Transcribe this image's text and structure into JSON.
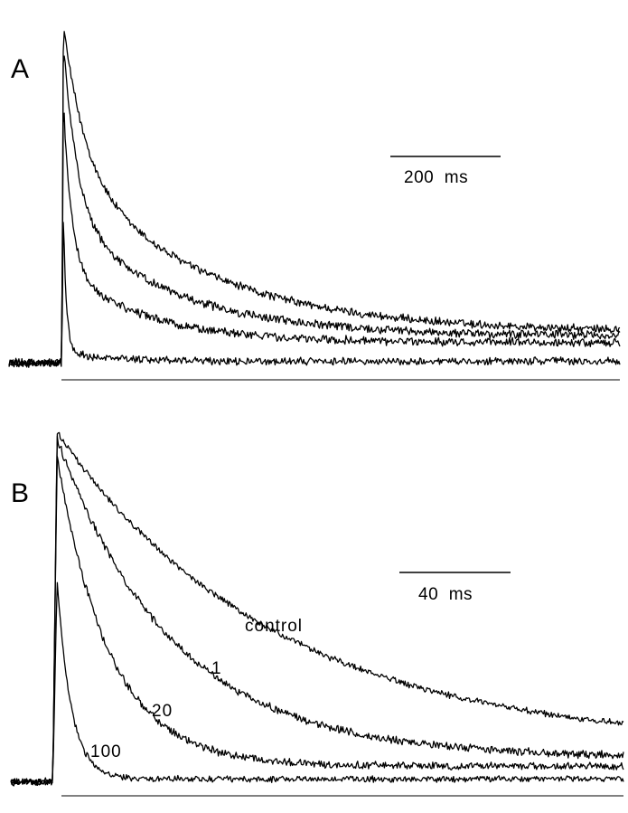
{
  "chart_data": [
    {
      "type": "line",
      "panel_label": "A",
      "scale_bar": {
        "value": 200,
        "label": "200  ms"
      },
      "x_unit": "ms",
      "xlim": [
        -70,
        740
      ],
      "ylim": [
        -0.05,
        1.05
      ],
      "onset": 0,
      "baseline": 0,
      "series": [
        {
          "peak": 1.0,
          "tau_fast": 28,
          "tau_slow": 180,
          "slow_fraction": 0.55,
          "plateau": 0.09,
          "noise": 0.011
        },
        {
          "peak": 0.95,
          "tau_fast": 18,
          "tau_slow": 140,
          "slow_fraction": 0.42,
          "plateau": 0.08,
          "noise": 0.011
        },
        {
          "peak": 0.78,
          "tau_fast": 11,
          "tau_slow": 110,
          "slow_fraction": 0.3,
          "plateau": 0.06,
          "noise": 0.011
        },
        {
          "peak": 0.45,
          "tau_fast": 4,
          "tau_slow": 60,
          "slow_fraction": 0.06,
          "plateau": 0.005,
          "noise": 0.01
        }
      ]
    },
    {
      "type": "line",
      "panel_label": "B",
      "scale_bar": {
        "value": 40,
        "label": "40  ms"
      },
      "x_unit": "ms",
      "xlim": [
        -12,
        163
      ],
      "ylim": [
        -0.04,
        1.02
      ],
      "onset": 0,
      "baseline": 0,
      "series": [
        {
          "name": "control",
          "peak": 1.0,
          "tau": 62,
          "plateau": 0.1,
          "noise": 0.008
        },
        {
          "name": "1",
          "peak": 0.98,
          "tau": 33,
          "plateau": 0.07,
          "noise": 0.01
        },
        {
          "name": "20",
          "peak": 0.93,
          "tau": 15,
          "plateau": 0.045,
          "noise": 0.01
        },
        {
          "name": "100",
          "peak": 0.58,
          "tau": 4,
          "plateau": 0.008,
          "noise": 0.008
        }
      ]
    }
  ]
}
